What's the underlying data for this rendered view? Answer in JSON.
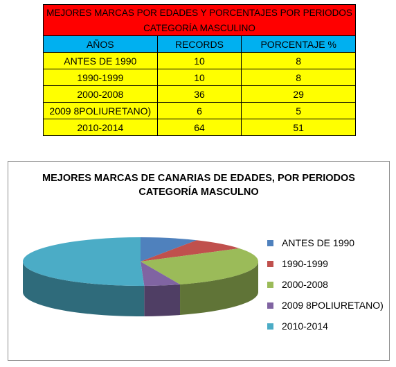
{
  "table": {
    "title_line1": "MEJORES MARCAS POR EDADES Y PORCENTAJES POR PERIODOS",
    "title_line2": "CATEGORÍA MASCULINO",
    "headers": [
      "AÑOS",
      "RECORDS",
      "PORCENTAJE %"
    ],
    "rows": [
      [
        "ANTES DE 1990",
        "10",
        "8"
      ],
      [
        "1990-1999",
        "10",
        "8"
      ],
      [
        "2000-2008",
        "36",
        "29"
      ],
      [
        "2009 8POLIURETANO)",
        "6",
        "5"
      ],
      [
        "2010-2014",
        "64",
        "51"
      ]
    ]
  },
  "chart_data": {
    "type": "pie",
    "style": "3d",
    "title_line1": "MEJORES MARCAS DE CANARIAS DE EDADES, POR PERIODOS",
    "title_line2": "CATEGORÍA MASCULNO",
    "categories": [
      "ANTES DE 1990",
      "1990-1999",
      "2000-2008",
      "2009 8POLIURETANO)",
      "2010-2014"
    ],
    "values": [
      8,
      8,
      29,
      5,
      51
    ],
    "colors": [
      "#4f81bd",
      "#c0504d",
      "#9bbb59",
      "#8064a2",
      "#4bacc6"
    ],
    "legend": "right"
  }
}
